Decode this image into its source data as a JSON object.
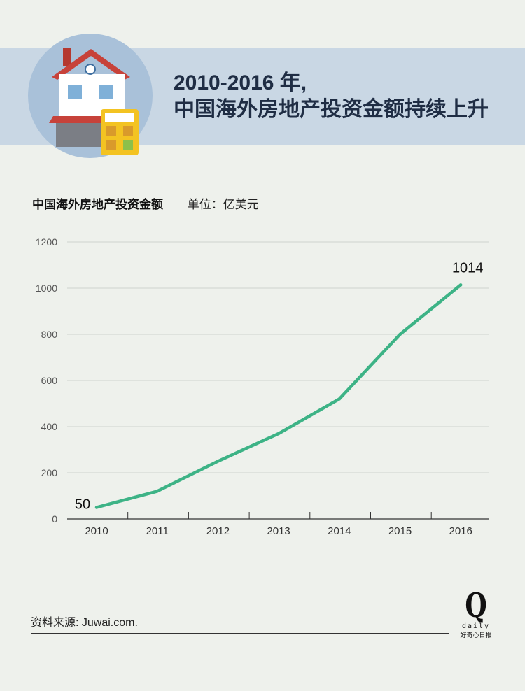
{
  "header": {
    "title_line1": "2010-2016 年,",
    "title_line2": "中国海外房地产投资金额持续上升"
  },
  "subtitle": {
    "metric": "中国海外房地产投资金额",
    "unit": "单位：亿美元"
  },
  "chart_data": {
    "type": "line",
    "x": [
      "2010",
      "2011",
      "2012",
      "2013",
      "2014",
      "2015",
      "2016"
    ],
    "series": [
      {
        "values": [
          50,
          120,
          250,
          370,
          520,
          800,
          1014
        ]
      }
    ],
    "ylim": [
      0,
      1200
    ],
    "yticks": [
      0,
      200,
      400,
      600,
      800,
      1000,
      1200
    ],
    "data_labels": [
      {
        "index": 0,
        "text": "50"
      },
      {
        "index": 6,
        "text": "1014"
      }
    ],
    "grid": true,
    "line_color": "#3db386"
  },
  "footer": {
    "source": "资料来源: Juwai.com.",
    "logo_letter": "Q",
    "logo_word": "daily",
    "logo_cn": "好奇心日报"
  }
}
